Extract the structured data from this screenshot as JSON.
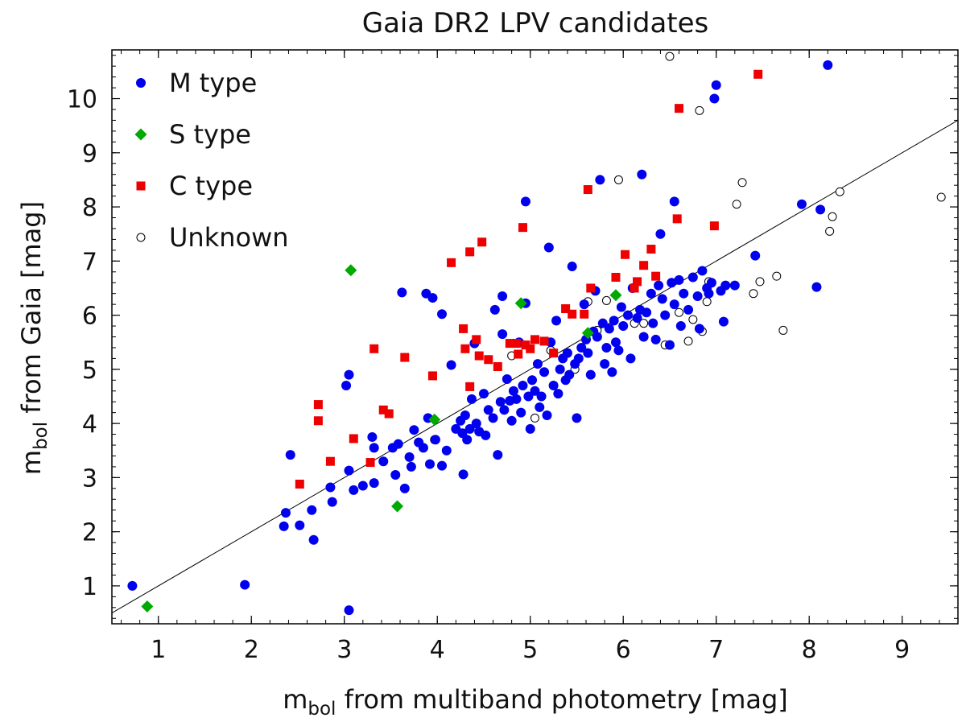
{
  "chart_data": {
    "type": "scatter",
    "title": "Gaia DR2 LPV candidates",
    "xlabel": {
      "base": "m",
      "sub": "bol",
      "rest": " from multiband photometry  [mag]"
    },
    "ylabel": {
      "base": "m",
      "sub": "bol",
      "rest": " from Gaia  [mag]"
    },
    "xlim": [
      0.5,
      9.6
    ],
    "ylim": [
      0.3,
      10.9
    ],
    "xticks": [
      1,
      2,
      3,
      4,
      5,
      6,
      7,
      8,
      9
    ],
    "yticks": [
      1,
      2,
      3,
      4,
      5,
      6,
      7,
      8,
      9,
      10
    ],
    "grid": false,
    "legend_position": "top-left",
    "reference_line": {
      "label": "",
      "slope": 1.0,
      "intercept": 0.0
    },
    "series": [
      {
        "name": "M type",
        "marker": "circle",
        "color": "#0000ee",
        "points": [
          [
            0.72,
            1.0
          ],
          [
            1.93,
            1.02
          ],
          [
            3.05,
            0.55
          ],
          [
            2.35,
            2.1
          ],
          [
            2.37,
            2.35
          ],
          [
            2.42,
            3.42
          ],
          [
            2.52,
            2.12
          ],
          [
            2.65,
            2.4
          ],
          [
            2.67,
            1.85
          ],
          [
            2.85,
            2.82
          ],
          [
            2.87,
            2.55
          ],
          [
            3.02,
            4.7
          ],
          [
            3.05,
            4.9
          ],
          [
            3.05,
            3.13
          ],
          [
            3.1,
            2.77
          ],
          [
            3.2,
            2.85
          ],
          [
            3.3,
            3.75
          ],
          [
            3.32,
            3.55
          ],
          [
            3.32,
            2.9
          ],
          [
            3.42,
            3.3
          ],
          [
            3.52,
            3.55
          ],
          [
            3.55,
            3.05
          ],
          [
            3.58,
            3.62
          ],
          [
            3.62,
            6.42
          ],
          [
            3.65,
            2.8
          ],
          [
            3.7,
            3.38
          ],
          [
            3.72,
            3.2
          ],
          [
            3.75,
            3.88
          ],
          [
            3.8,
            3.65
          ],
          [
            3.85,
            3.55
          ],
          [
            3.88,
            6.4
          ],
          [
            3.9,
            4.1
          ],
          [
            3.92,
            3.25
          ],
          [
            3.95,
            6.32
          ],
          [
            3.98,
            3.7
          ],
          [
            4.05,
            3.22
          ],
          [
            4.05,
            6.02
          ],
          [
            4.1,
            3.5
          ],
          [
            4.15,
            5.08
          ],
          [
            4.2,
            3.9
          ],
          [
            4.25,
            4.05
          ],
          [
            4.27,
            3.82
          ],
          [
            4.28,
            3.06
          ],
          [
            4.3,
            4.15
          ],
          [
            4.32,
            3.7
          ],
          [
            4.35,
            3.9
          ],
          [
            4.37,
            4.45
          ],
          [
            4.4,
            5.48
          ],
          [
            4.42,
            4.0
          ],
          [
            4.45,
            3.85
          ],
          [
            4.5,
            4.55
          ],
          [
            4.52,
            3.78
          ],
          [
            4.55,
            4.25
          ],
          [
            4.6,
            4.1
          ],
          [
            4.62,
            6.1
          ],
          [
            4.65,
            3.42
          ],
          [
            4.68,
            4.4
          ],
          [
            4.7,
            6.35
          ],
          [
            4.7,
            5.65
          ],
          [
            4.72,
            4.25
          ],
          [
            4.75,
            4.82
          ],
          [
            4.78,
            4.42
          ],
          [
            4.8,
            4.05
          ],
          [
            4.82,
            4.6
          ],
          [
            4.85,
            4.45
          ],
          [
            4.88,
            5.5
          ],
          [
            4.9,
            4.2
          ],
          [
            4.92,
            4.7
          ],
          [
            4.95,
            6.22
          ],
          [
            4.95,
            8.1
          ],
          [
            4.98,
            4.5
          ],
          [
            5.0,
            3.9
          ],
          [
            5.02,
            4.8
          ],
          [
            5.05,
            4.6
          ],
          [
            5.08,
            5.1
          ],
          [
            5.1,
            4.3
          ],
          [
            5.12,
            4.5
          ],
          [
            5.15,
            4.95
          ],
          [
            5.18,
            4.15
          ],
          [
            5.2,
            7.25
          ],
          [
            5.22,
            5.5
          ],
          [
            5.25,
            4.7
          ],
          [
            5.28,
            5.9
          ],
          [
            5.3,
            4.55
          ],
          [
            5.32,
            5.0
          ],
          [
            5.35,
            5.2
          ],
          [
            5.38,
            4.8
          ],
          [
            5.4,
            5.3
          ],
          [
            5.42,
            4.9
          ],
          [
            5.45,
            6.9
          ],
          [
            5.48,
            5.1
          ],
          [
            5.5,
            4.1
          ],
          [
            5.52,
            5.2
          ],
          [
            5.55,
            5.4
          ],
          [
            5.58,
            6.2
          ],
          [
            5.6,
            5.55
          ],
          [
            5.62,
            5.3
          ],
          [
            5.65,
            4.9
          ],
          [
            5.68,
            5.7
          ],
          [
            5.7,
            6.45
          ],
          [
            5.72,
            5.6
          ],
          [
            5.75,
            8.5
          ],
          [
            5.78,
            5.85
          ],
          [
            5.8,
            5.1
          ],
          [
            5.82,
            5.4
          ],
          [
            5.85,
            5.75
          ],
          [
            5.88,
            4.95
          ],
          [
            5.9,
            5.9
          ],
          [
            5.92,
            5.5
          ],
          [
            5.95,
            5.35
          ],
          [
            5.98,
            6.15
          ],
          [
            6.0,
            5.8
          ],
          [
            6.05,
            6.0
          ],
          [
            6.08,
            5.2
          ],
          [
            6.1,
            6.5
          ],
          [
            6.15,
            5.95
          ],
          [
            6.18,
            6.1
          ],
          [
            6.2,
            8.6
          ],
          [
            6.22,
            5.6
          ],
          [
            6.25,
            6.05
          ],
          [
            6.3,
            6.4
          ],
          [
            6.32,
            5.85
          ],
          [
            6.35,
            5.55
          ],
          [
            6.38,
            6.55
          ],
          [
            6.4,
            7.5
          ],
          [
            6.42,
            6.3
          ],
          [
            6.45,
            6.0
          ],
          [
            6.5,
            5.45
          ],
          [
            6.52,
            6.6
          ],
          [
            6.55,
            8.1
          ],
          [
            6.55,
            6.2
          ],
          [
            6.6,
            6.65
          ],
          [
            6.62,
            5.8
          ],
          [
            6.65,
            6.4
          ],
          [
            6.7,
            6.1
          ],
          [
            6.75,
            6.7
          ],
          [
            6.8,
            6.35
          ],
          [
            6.82,
            5.75
          ],
          [
            6.85,
            6.82
          ],
          [
            6.9,
            6.5
          ],
          [
            6.92,
            6.4
          ],
          [
            6.95,
            6.6
          ],
          [
            6.98,
            10.0
          ],
          [
            7.0,
            10.25
          ],
          [
            7.05,
            6.45
          ],
          [
            7.08,
            5.88
          ],
          [
            7.1,
            6.55
          ],
          [
            7.2,
            6.55
          ],
          [
            7.42,
            7.1
          ],
          [
            7.92,
            8.05
          ],
          [
            8.08,
            6.52
          ],
          [
            8.12,
            7.95
          ],
          [
            8.2,
            10.62
          ]
        ]
      },
      {
        "name": "S type",
        "marker": "diamond",
        "color": "#00aa00",
        "points": [
          [
            0.88,
            0.62
          ],
          [
            3.07,
            6.83
          ],
          [
            3.57,
            2.47
          ],
          [
            3.97,
            4.07
          ],
          [
            4.9,
            6.22
          ],
          [
            5.62,
            5.67
          ],
          [
            5.92,
            6.37
          ]
        ]
      },
      {
        "name": "C type",
        "marker": "square",
        "color": "#ee0000",
        "points": [
          [
            2.52,
            2.88
          ],
          [
            2.72,
            4.35
          ],
          [
            2.72,
            4.05
          ],
          [
            2.85,
            3.3
          ],
          [
            3.1,
            3.72
          ],
          [
            3.28,
            3.28
          ],
          [
            3.32,
            5.38
          ],
          [
            3.42,
            4.25
          ],
          [
            3.48,
            4.18
          ],
          [
            3.65,
            5.22
          ],
          [
            3.95,
            4.88
          ],
          [
            4.15,
            6.97
          ],
          [
            4.28,
            5.75
          ],
          [
            4.3,
            5.38
          ],
          [
            4.35,
            7.17
          ],
          [
            4.35,
            4.68
          ],
          [
            4.42,
            5.55
          ],
          [
            4.48,
            7.35
          ],
          [
            4.45,
            5.25
          ],
          [
            4.55,
            5.18
          ],
          [
            4.65,
            5.05
          ],
          [
            4.78,
            5.48
          ],
          [
            4.85,
            5.48
          ],
          [
            4.87,
            5.28
          ],
          [
            4.92,
            7.62
          ],
          [
            4.95,
            5.45
          ],
          [
            5.0,
            5.38
          ],
          [
            5.05,
            5.55
          ],
          [
            5.15,
            5.52
          ],
          [
            5.25,
            5.3
          ],
          [
            5.38,
            6.12
          ],
          [
            5.45,
            6.02
          ],
          [
            5.58,
            6.02
          ],
          [
            5.62,
            8.32
          ],
          [
            5.65,
            6.5
          ],
          [
            5.92,
            6.7
          ],
          [
            6.02,
            7.12
          ],
          [
            6.12,
            6.5
          ],
          [
            6.15,
            6.62
          ],
          [
            6.22,
            6.92
          ],
          [
            6.3,
            7.22
          ],
          [
            6.35,
            6.72
          ],
          [
            6.58,
            7.78
          ],
          [
            6.6,
            9.82
          ],
          [
            6.98,
            7.65
          ],
          [
            7.45,
            10.45
          ]
        ]
      },
      {
        "name": "Unknown",
        "marker": "open-circle",
        "color": "#000000",
        "points": [
          [
            3.97,
            3.7
          ],
          [
            4.8,
            5.25
          ],
          [
            5.05,
            4.1
          ],
          [
            5.22,
            5.35
          ],
          [
            5.48,
            5.0
          ],
          [
            5.62,
            6.25
          ],
          [
            5.72,
            5.72
          ],
          [
            5.82,
            6.27
          ],
          [
            5.95,
            8.5
          ],
          [
            6.12,
            5.85
          ],
          [
            6.22,
            5.85
          ],
          [
            6.45,
            5.45
          ],
          [
            6.5,
            10.78
          ],
          [
            6.6,
            6.05
          ],
          [
            6.7,
            5.52
          ],
          [
            6.75,
            5.92
          ],
          [
            6.82,
            9.78
          ],
          [
            6.85,
            5.7
          ],
          [
            6.9,
            6.25
          ],
          [
            6.92,
            6.62
          ],
          [
            7.22,
            8.05
          ],
          [
            7.28,
            8.45
          ],
          [
            7.4,
            6.4
          ],
          [
            7.47,
            6.62
          ],
          [
            7.65,
            6.72
          ],
          [
            7.72,
            5.72
          ],
          [
            8.22,
            7.55
          ],
          [
            8.25,
            7.82
          ],
          [
            8.33,
            8.28
          ],
          [
            9.42,
            8.18
          ]
        ]
      }
    ]
  }
}
